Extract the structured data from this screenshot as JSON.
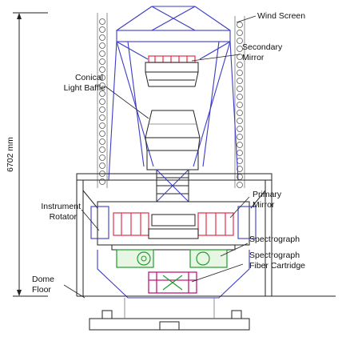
{
  "labels": {
    "wind_screen": "Wind Screen",
    "secondary_mirror_l1": "Secondary",
    "secondary_mirror_l2": "Mirror",
    "conical_baffle_l1": "Conical",
    "conical_baffle_l2": "Light Baffle",
    "height_dimension": "6702 mm",
    "primary_mirror_l1": "Primary",
    "primary_mirror_l2": "Mirror",
    "instrument_rotator_l1": "Instrument",
    "instrument_rotator_l2": "Rotator",
    "spectrograph": "Spectrograph",
    "fiber_cartridge_l1": "Spectrograph",
    "fiber_cartridge_l2": "Fiber Cartridge",
    "dome_floor_l1": "Dome",
    "dome_floor_l2": "Floor"
  },
  "colors": {
    "truss": "#3b3bc7",
    "mirror_cell": "#e0304a",
    "spectrograph": "#1f9a2e",
    "fiber_cartridge": "#c2187a",
    "outline": "#222222"
  }
}
